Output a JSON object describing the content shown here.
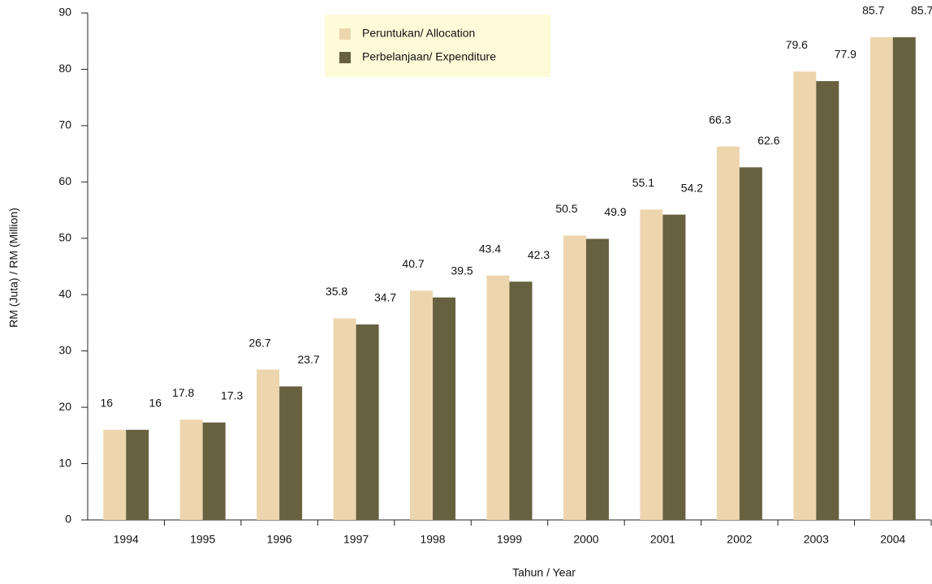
{
  "chart_data": {
    "type": "bar",
    "ylabel": "RM (Juta) / RM (Million)",
    "xlabel": "Tahun / Year",
    "categories": [
      "1994",
      "1995",
      "1996",
      "1997",
      "1998",
      "1999",
      "2000",
      "2001",
      "2002",
      "2003",
      "2004"
    ],
    "series": [
      {
        "name": "Peruntukan/ Allocation",
        "color": "#edd5ae",
        "values": [
          16,
          17.8,
          26.7,
          35.8,
          40.7,
          43.4,
          50.5,
          55.1,
          66.3,
          79.6,
          85.7
        ]
      },
      {
        "name": "Perbelanjaan/ Expenditure",
        "color": "#676140",
        "values": [
          16,
          17.3,
          23.7,
          34.7,
          39.5,
          42.3,
          49.9,
          54.2,
          62.6,
          77.9,
          85.7
        ]
      }
    ],
    "ylim": [
      0,
      90
    ],
    "yticks": [
      0,
      10,
      20,
      30,
      40,
      50,
      60,
      70,
      80,
      90
    ],
    "grid": false,
    "legend": "top"
  }
}
